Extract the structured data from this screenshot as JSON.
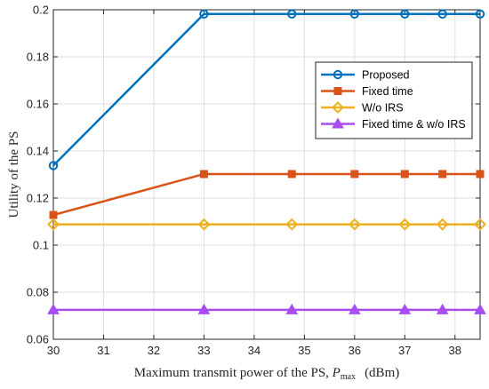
{
  "chart_data": {
    "type": "line",
    "title": "",
    "xlabel": "Maximum transmit power of the PS, ",
    "xlabel_symbol": "P",
    "xlabel_subscript": "max",
    "xlabel_unit": "(dBm)",
    "ylabel": "Utility of the PS",
    "xlim": [
      30,
      38.5
    ],
    "ylim": [
      0.06,
      0.2
    ],
    "xticks": [
      30,
      31,
      32,
      33,
      34,
      35,
      36,
      37,
      38
    ],
    "yticks": [
      0.06,
      0.08,
      0.1,
      0.12,
      0.14,
      0.16,
      0.18,
      0.2
    ],
    "xtick_labels": [
      "30",
      "31",
      "32",
      "33",
      "34",
      "35",
      "36",
      "37",
      "38"
    ],
    "ytick_labels": [
      "0.06",
      "0.08",
      "0.1",
      "0.12",
      "0.14",
      "0.16",
      "0.18",
      "0.2"
    ],
    "grid": true,
    "legend_position": "top-right",
    "x": [
      30,
      33,
      34.75,
      36,
      37,
      37.75,
      38.5
    ],
    "series": [
      {
        "name": "Proposed",
        "color": "#0072BD",
        "marker": "circle",
        "values": [
          0.1338,
          0.1982,
          0.1982,
          0.1982,
          0.1982,
          0.1982,
          0.1982
        ]
      },
      {
        "name": "Fixed time",
        "color": "#D95319",
        "marker": "square",
        "values": [
          0.1128,
          0.1302,
          0.1302,
          0.1302,
          0.1302,
          0.1302,
          0.1302
        ]
      },
      {
        "name": "W/o IRS",
        "color": "#EDB120",
        "marker": "diamond",
        "values": [
          0.1088,
          0.1088,
          0.1088,
          0.1088,
          0.1088,
          0.1088,
          0.1088
        ]
      },
      {
        "name": "Fixed time & w/o IRS",
        "color": "#A94CF0",
        "marker": "triangle",
        "values": [
          0.0725,
          0.0725,
          0.0725,
          0.0725,
          0.0725,
          0.0725,
          0.0725
        ]
      }
    ]
  }
}
